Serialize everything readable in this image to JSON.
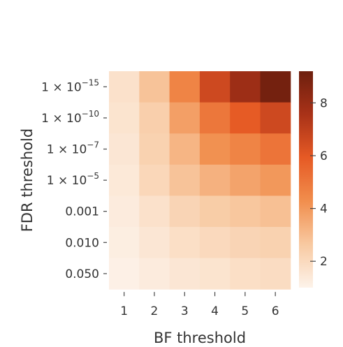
{
  "chart_data": {
    "type": "heatmap",
    "title": "",
    "xlabel": "BF threshold",
    "ylabel": "FDR threshold",
    "x_categories": [
      "1",
      "2",
      "3",
      "4",
      "5",
      "6"
    ],
    "y_categories": [
      {
        "base": "1 × 10",
        "exp": "−15"
      },
      {
        "base": "1 × 10",
        "exp": "−10"
      },
      {
        "base": "1 × 10",
        "exp": "−7"
      },
      {
        "base": "1 × 10",
        "exp": "−5"
      },
      {
        "base": "0.001",
        "exp": ""
      },
      {
        "base": "0.010",
        "exp": ""
      },
      {
        "base": "0.050",
        "exp": ""
      }
    ],
    "values": [
      [
        1.7,
        2.8,
        4.6,
        6.6,
        7.9,
        9.0
      ],
      [
        1.6,
        2.4,
        3.8,
        5.0,
        5.9,
        6.6
      ],
      [
        1.5,
        2.3,
        3.2,
        4.2,
        4.6,
        5.1
      ],
      [
        1.4,
        2.1,
        2.8,
        3.3,
        3.7,
        4.0
      ],
      [
        1.3,
        1.7,
        2.2,
        2.5,
        2.7,
        2.9
      ],
      [
        1.2,
        1.5,
        1.8,
        2.0,
        2.2,
        2.3
      ],
      [
        1.1,
        1.3,
        1.5,
        1.6,
        1.8,
        1.9
      ]
    ],
    "colorbar": {
      "min": 1,
      "max": 9.2,
      "ticks": [
        2,
        4,
        6,
        8
      ],
      "colors": [
        "#fdf3ea",
        "#f8c9a1",
        "#f18e4d",
        "#e65a25",
        "#a93218",
        "#6d1f0e"
      ]
    }
  }
}
